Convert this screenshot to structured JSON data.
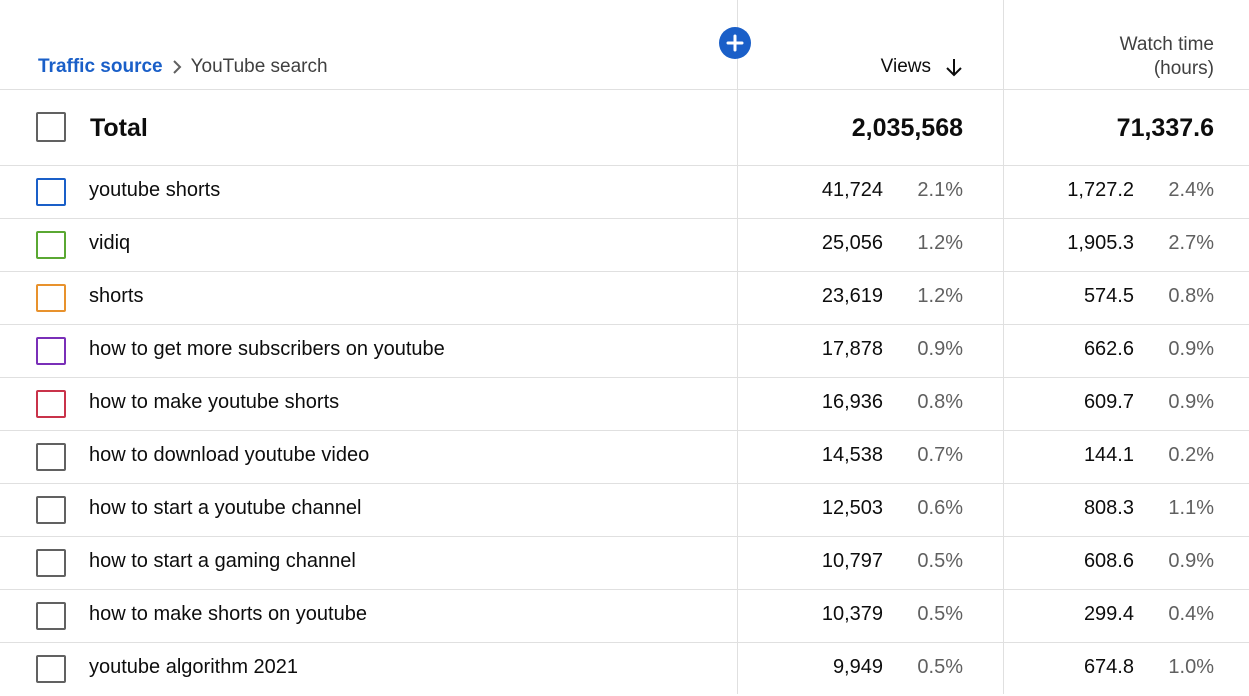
{
  "header": {
    "breadcrumb_root": "Traffic source",
    "breadcrumb_current": "YouTube search",
    "views_label": "Views",
    "watch_time_line1": "Watch time",
    "watch_time_line2": "(hours)"
  },
  "total": {
    "label": "Total",
    "views": "2,035,568",
    "watch_time": "71,337.6"
  },
  "rows": [
    {
      "term": "youtube shorts",
      "views": "41,724",
      "views_pct": "2.1%",
      "watch": "1,727.2",
      "watch_pct": "2.4%",
      "color": "#1a5fc8"
    },
    {
      "term": "vidiq",
      "views": "25,056",
      "views_pct": "1.2%",
      "watch": "1,905.3",
      "watch_pct": "2.7%",
      "color": "#5aa832"
    },
    {
      "term": "shorts",
      "views": "23,619",
      "views_pct": "1.2%",
      "watch": "574.5",
      "watch_pct": "0.8%",
      "color": "#e8922d"
    },
    {
      "term": "how to get more subscribers on youtube",
      "views": "17,878",
      "views_pct": "0.9%",
      "watch": "662.6",
      "watch_pct": "0.9%",
      "color": "#7a2fb8"
    },
    {
      "term": "how to make youtube shorts",
      "views": "16,936",
      "views_pct": "0.8%",
      "watch": "609.7",
      "watch_pct": "0.9%",
      "color": "#c9334a"
    },
    {
      "term": "how to download youtube video",
      "views": "14,538",
      "views_pct": "0.7%",
      "watch": "144.1",
      "watch_pct": "0.2%",
      "color": "#616161"
    },
    {
      "term": "how to start a youtube channel",
      "views": "12,503",
      "views_pct": "0.6%",
      "watch": "808.3",
      "watch_pct": "1.1%",
      "color": "#616161"
    },
    {
      "term": "how to start a gaming channel",
      "views": "10,797",
      "views_pct": "0.5%",
      "watch": "608.6",
      "watch_pct": "0.9%",
      "color": "#616161"
    },
    {
      "term": "how to make shorts on youtube",
      "views": "10,379",
      "views_pct": "0.5%",
      "watch": "299.4",
      "watch_pct": "0.4%",
      "color": "#616161"
    },
    {
      "term": "youtube algorithm 2021",
      "views": "9,949",
      "views_pct": "0.5%",
      "watch": "674.8",
      "watch_pct": "1.0%",
      "color": "#616161"
    }
  ],
  "icons": {
    "add": "plus-circle-icon",
    "sort": "arrow-down-icon",
    "separator": "chevron-right-icon"
  }
}
